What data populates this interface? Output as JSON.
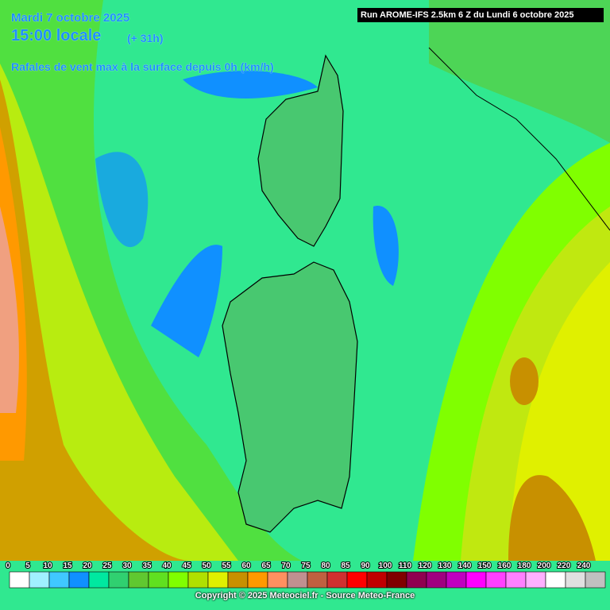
{
  "header": {
    "date": "Mardi 7 octobre 2025",
    "time": "15:00 locale",
    "lead": "(+ 31h)",
    "subtitle": "Rafales de vent max à la surface depuis 0h (km/h)"
  },
  "run": "Run AROME-IFS 2.5km 6 Z du Lundi 6 octobre 2025",
  "legend": {
    "labels": [
      0,
      5,
      10,
      15,
      20,
      25,
      30,
      35,
      40,
      45,
      50,
      55,
      60,
      65,
      70,
      75,
      80,
      85,
      90,
      100,
      110,
      120,
      130,
      140,
      150,
      160,
      180,
      200,
      220,
      240
    ],
    "colors": [
      "#ffffff",
      "#a0f0ff",
      "#40c8ff",
      "#1090ff",
      "#00e8a0",
      "#30d070",
      "#60c830",
      "#60e020",
      "#80ff00",
      "#b0e000",
      "#e0f000",
      "#c89000",
      "#ff9900",
      "#ff9060",
      "#c09090",
      "#c06040",
      "#d03030",
      "#ff0000",
      "#c00000",
      "#800000",
      "#900050",
      "#a00080",
      "#c000c0",
      "#ff00ff",
      "#ff40ff",
      "#ff80ff",
      "#ffb0ff",
      "#ffffff",
      "#e0e0e0",
      "#c0c0c0"
    ]
  },
  "copyright": "Copyright © 2025 Meteociel.fr - Source Meteo-France"
}
